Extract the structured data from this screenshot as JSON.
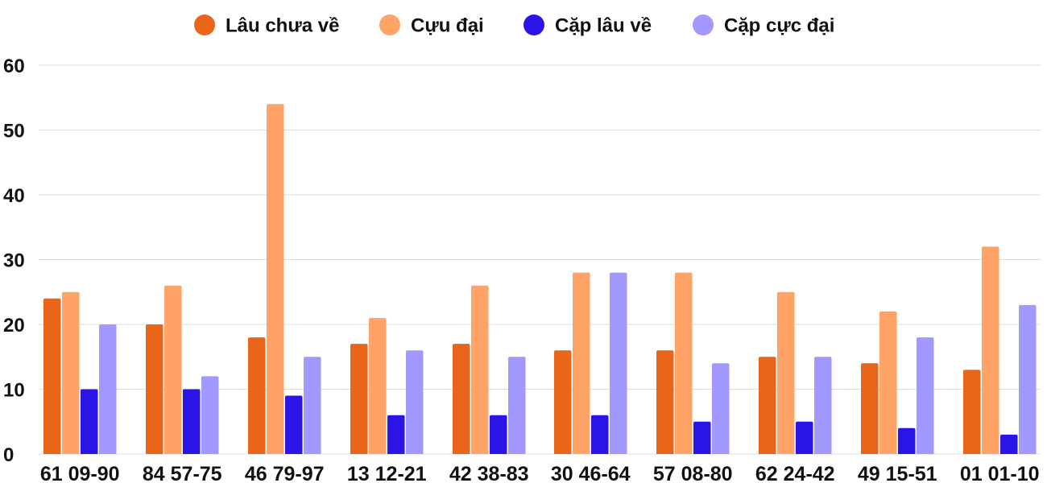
{
  "colors": {
    "lau_chua_ve": "#E8651A",
    "cuu_dai": "#FFA366",
    "cap_lau_ve": "#2A14E6",
    "cap_cuc_dai": "#A199FF",
    "grid": "#DDDDDD",
    "text": "#111111"
  },
  "chart_data": {
    "type": "bar",
    "categories": [
      "61 09-90",
      "84 57-75",
      "46 79-97",
      "13 12-21",
      "42 38-83",
      "30 46-64",
      "57 08-80",
      "62 24-42",
      "49 15-51",
      "01 01-10"
    ],
    "series": [
      {
        "name": "Lâu chưa về",
        "color": "#E8651A",
        "values": [
          24,
          20,
          18,
          17,
          17,
          16,
          16,
          15,
          14,
          13
        ]
      },
      {
        "name": "Cựu đại",
        "color": "#FFA366",
        "values": [
          25,
          26,
          54,
          21,
          26,
          28,
          28,
          25,
          22,
          32
        ]
      },
      {
        "name": "Cặp lâu về",
        "color": "#2A14E6",
        "values": [
          10,
          10,
          9,
          6,
          6,
          6,
          5,
          5,
          4,
          3
        ]
      },
      {
        "name": "Cặp cực đại",
        "color": "#A199FF",
        "values": [
          20,
          12,
          15,
          16,
          15,
          28,
          14,
          15,
          18,
          23
        ]
      }
    ],
    "ylim": [
      0,
      60
    ],
    "yticks": [
      "0",
      "10",
      "20",
      "30",
      "40",
      "50",
      "60"
    ],
    "grid": true,
    "legend_position": "top-center"
  }
}
